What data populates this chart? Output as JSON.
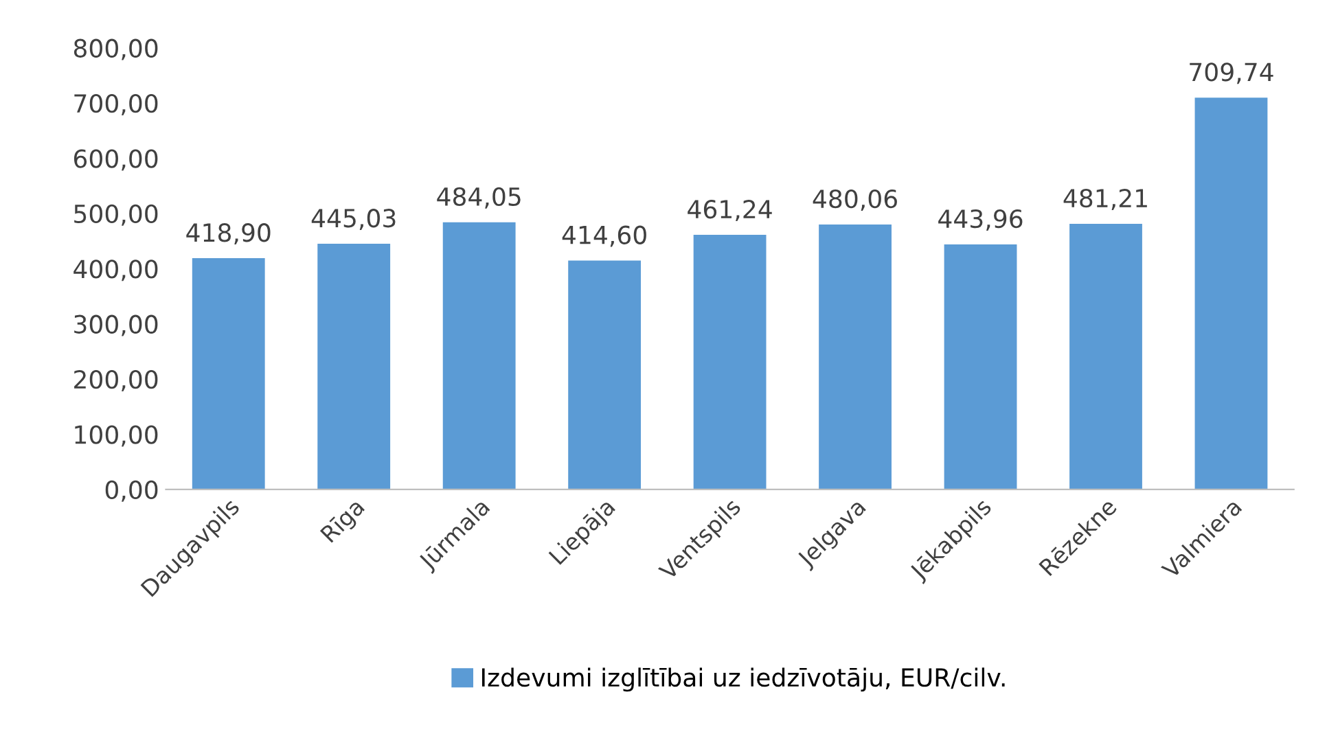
{
  "chart_data": {
    "type": "bar",
    "categories": [
      "Daugavpils",
      "Rīga",
      "Jūrmala",
      "Liepāja",
      "Ventspils",
      "Jelgava",
      "Jēkabpils",
      "Rēzekne",
      "Valmiera"
    ],
    "series": [
      {
        "name": "Izdevumi izglītībai uz iedzīvotāju, EUR/cilv.",
        "color": "#5b9bd5",
        "values": [
          418.9,
          445.03,
          484.05,
          414.6,
          461.24,
          480.06,
          443.96,
          481.21,
          709.74
        ],
        "value_labels": [
          "418,90",
          "445,03",
          "484,05",
          "414,60",
          "461,24",
          "480,06",
          "443,96",
          "481,21",
          "709,74"
        ]
      }
    ],
    "ylim": [
      0,
      800
    ],
    "yticks": [
      {
        "value": 0,
        "label": "0,00"
      },
      {
        "value": 100,
        "label": "100,00"
      },
      {
        "value": 200,
        "label": "200,00"
      },
      {
        "value": 300,
        "label": "300,00"
      },
      {
        "value": 400,
        "label": "400,00"
      },
      {
        "value": 500,
        "label": "500,00"
      },
      {
        "value": 600,
        "label": "600,00"
      },
      {
        "value": 700,
        "label": "700,00"
      },
      {
        "value": 800,
        "label": "800,00"
      }
    ],
    "grid": false,
    "legend": "bottom"
  }
}
